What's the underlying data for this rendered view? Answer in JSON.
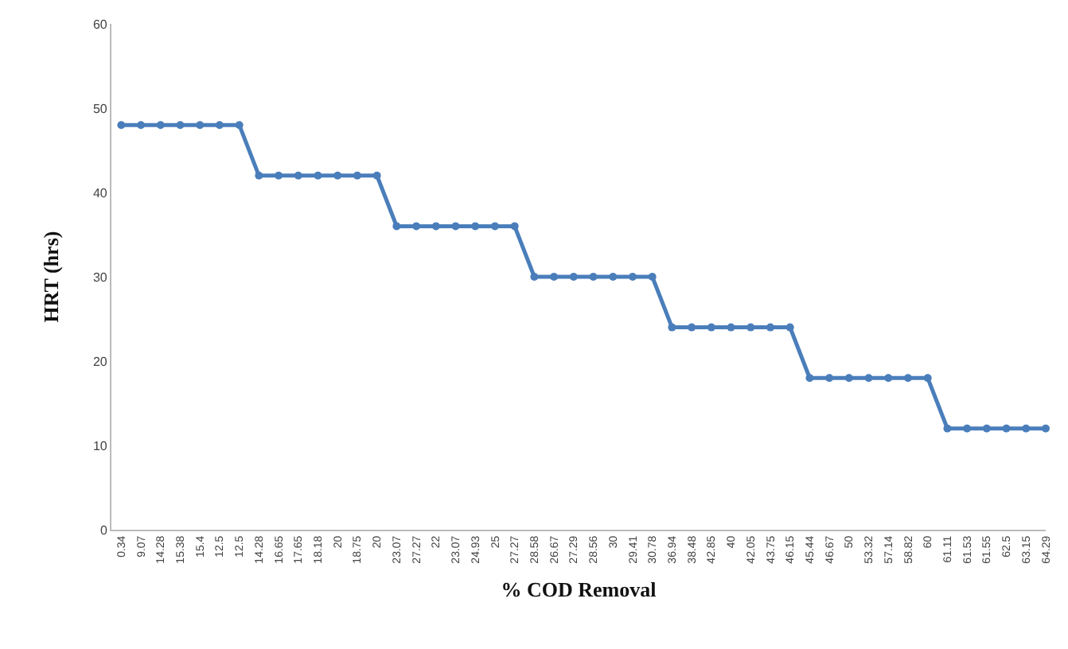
{
  "chart_data": {
    "type": "line",
    "xlabel": "% COD Removal",
    "ylabel": "HRT (hrs)",
    "categories": [
      "0.34",
      "9.07",
      "14.28",
      "15.38",
      "15.4",
      "12.5",
      "12.5",
      "14.28",
      "16.65",
      "17.65",
      "18.18",
      "20",
      "18.75",
      "20",
      "23.07",
      "27.27",
      "22",
      "23.07",
      "24.93",
      "25",
      "27.27",
      "28.58",
      "26.67",
      "27.29",
      "28.56",
      "30",
      "29.41",
      "30.78",
      "36.94",
      "38.48",
      "42.85",
      "40",
      "42.05",
      "43.75",
      "46.15",
      "45.44",
      "46.67",
      "50",
      "53.32",
      "57.14",
      "58.82",
      "60",
      "61.11",
      "61.53",
      "61.55",
      "62.5",
      "63.15",
      "64.29"
    ],
    "series": [
      {
        "color": "#4a7ebb",
        "values": [
          48,
          48,
          48,
          48,
          48,
          48,
          48,
          42,
          42,
          42,
          42,
          42,
          42,
          42,
          36,
          36,
          36,
          36,
          36,
          36,
          36,
          30,
          30,
          30,
          30,
          30,
          30,
          30,
          24,
          24,
          24,
          24,
          24,
          24,
          24,
          18,
          18,
          18,
          18,
          18,
          18,
          18,
          12,
          12,
          12,
          12,
          12,
          12
        ]
      }
    ],
    "ylim": [
      0,
      60
    ],
    "yticks": [
      0,
      10,
      20,
      30,
      40,
      50,
      60
    ],
    "marker": "circle",
    "line_style": "solid"
  }
}
